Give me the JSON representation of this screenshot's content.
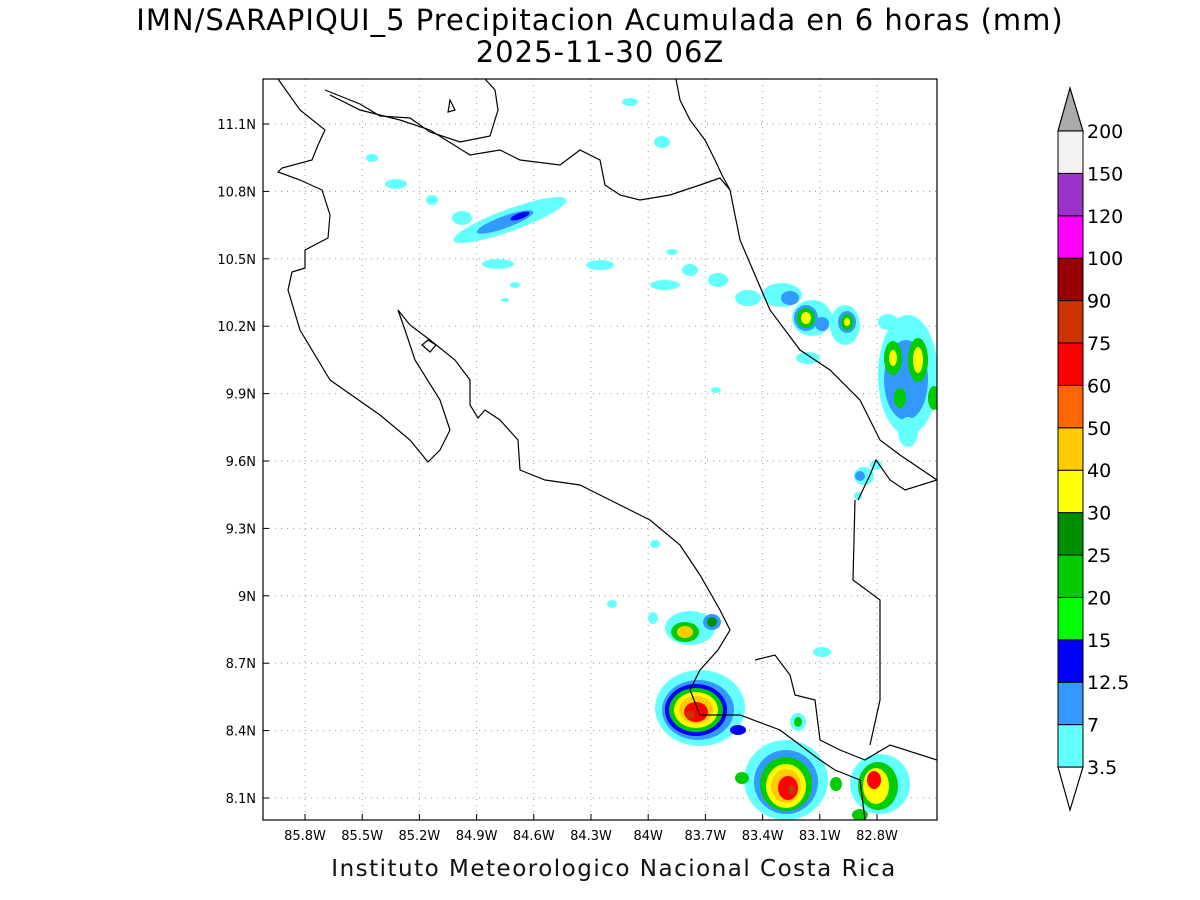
{
  "title": {
    "line1": "IMN/SARAPIQUI_5 Precipitacion Acumulada en 6 horas (mm)",
    "line2": "2025-11-30 06Z"
  },
  "credit": "Instituto Meteorologico Nacional Costa Rica",
  "lat_ticks": [
    "11.1N",
    "10.8N",
    "10.5N",
    "10.2N",
    "9.9N",
    "9.6N",
    "9.3N",
    "9N",
    "8.7N",
    "8.4N",
    "8.1N"
  ],
  "lon_ticks": [
    "85.8W",
    "85.5W",
    "85.2W",
    "84.9W",
    "84.6W",
    "84.3W",
    "84W",
    "83.7W",
    "83.4W",
    "83.1W",
    "82.8W"
  ],
  "colorbar": {
    "labels": [
      "3.5",
      "7",
      "12.5",
      "15",
      "20",
      "25",
      "30",
      "40",
      "50",
      "60",
      "75",
      "90",
      "100",
      "120",
      "150",
      "200"
    ],
    "colors": [
      "#64ffff",
      "#3399ff",
      "#0000ff",
      "#00ff00",
      "#00cc00",
      "#008f00",
      "#ffff00",
      "#ffcc00",
      "#ff6600",
      "#ff0000",
      "#cc3300",
      "#990000",
      "#ff00ff",
      "#9933cc",
      "#f2f2f2",
      "#aaaaaa"
    ]
  }
}
